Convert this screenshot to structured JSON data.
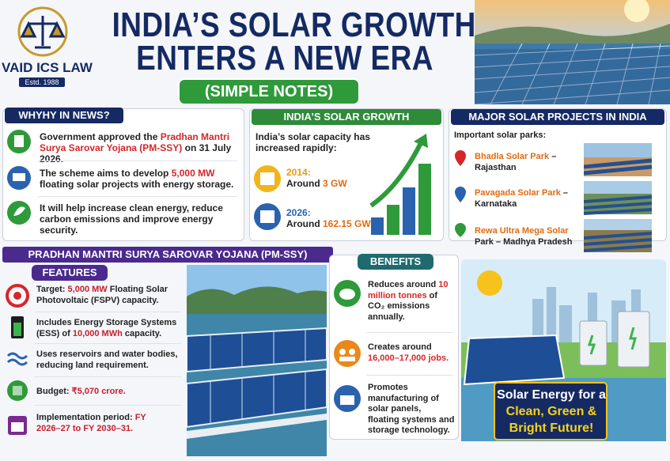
{
  "header": {
    "logo_name": "VAID ICS LAW",
    "logo_estd": "Estd. 1988",
    "title_line1": "INDIA’S SOLAR GROWTH",
    "title_line2": "ENTERS A NEW ERA",
    "subtitle": "(SIMPLE NOTES)"
  },
  "why_in_news": {
    "heading": "WHYHY IN NEWS?",
    "items": [
      [
        {
          "text": "Government approved the "
        },
        {
          "text": "Pradhan Mantri Surya Sarovar Yojana (PM-SSY)",
          "em": true
        },
        {
          "text": " on 31 July 2026."
        }
      ],
      [
        {
          "text": "The scheme aims to develop "
        },
        {
          "text": "5,000 MW",
          "em": true
        },
        {
          "text": " floating solar projects with energy storage."
        }
      ],
      [
        {
          "text": "It will help increase clean energy, reduce carbon emissions and improve energy security."
        }
      ]
    ]
  },
  "solar_growth": {
    "heading": "INDIA’S SOLAR GROWTH",
    "intro": "India’s solar capacity has increased rapidly:",
    "points": [
      {
        "year": "2014:",
        "segments": [
          {
            "text": "Around "
          },
          {
            "text": "3 GW",
            "em": true
          }
        ]
      },
      {
        "year": "2026:",
        "segments": [
          {
            "text": "Around "
          },
          {
            "text": "162.15 GW",
            "em": true
          }
        ]
      }
    ]
  },
  "major_projects": {
    "heading": "MAJOR SOLAR PROJECTS IN INDIA",
    "intro": "Important solar parks:",
    "parks": [
      [
        {
          "text": "Bhadla Solar Park",
          "em": true
        },
        {
          "text": " – Rajasthan"
        }
      ],
      [
        {
          "text": "Pavagada Solar Park",
          "em": true
        },
        {
          "text": " – Karnataka"
        }
      ],
      [
        {
          "text": "Rewa Ultra Mega Solar",
          "em": true
        },
        {
          "text": " Park – Madhya Pradesh"
        }
      ]
    ]
  },
  "pm_ssy": {
    "heading": "PRADHAN MANTRI SURYA SAROVAR YOJANA (PM-SSY)",
    "features_heading": "FEATURES",
    "features": [
      [
        {
          "text": "Target: "
        },
        {
          "text": "5,000 MW",
          "em": true
        },
        {
          "text": " Floating Solar Photovoltaic (FSPV) capacity."
        }
      ],
      [
        {
          "text": "Includes Energy Storage Systems (ESS) of "
        },
        {
          "text": "10,000 MWh",
          "em": true
        },
        {
          "text": " capacity."
        }
      ],
      [
        {
          "text": "Uses reservoirs and water bodies, reducing land requirement."
        }
      ],
      [
        {
          "text": "Budget: "
        },
        {
          "text": "₹5,070 crore.",
          "em": true
        }
      ],
      [
        {
          "text": "Implementation period: "
        },
        {
          "text": "FY 2026–27 to FY 2030–31.",
          "em": true
        }
      ]
    ],
    "benefits_heading": "BENEFITS",
    "benefits": [
      [
        {
          "text": "Reduces around "
        },
        {
          "text": "10 million tonnes",
          "em": true
        },
        {
          "text": " of CO₂ emissions annually."
        }
      ],
      [
        {
          "text": "Creates around "
        },
        {
          "text": "16,000–17,000 jobs.",
          "em": true
        }
      ],
      [
        {
          "text": "Promotes manufacturing of solar panels, floating systems and storage technology."
        }
      ]
    ],
    "tagline": [
      "Solar Energy for a",
      "Clean, Green &",
      "Bright Future!"
    ]
  }
}
